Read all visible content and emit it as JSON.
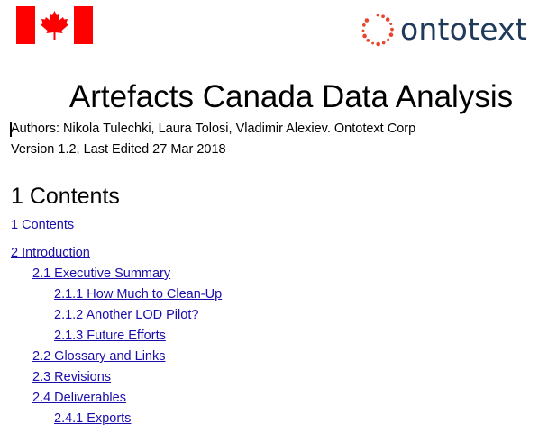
{
  "document": {
    "title": "Artefacts Canada Data Analysis",
    "authors": "Authors: Nikola Tulechki, Laura Tolosi, Vladimir Alexiev. Ontotext Corp",
    "version": "Version 1.2, Last Edited 27 Mar 2018",
    "contents_heading": "1 Contents"
  },
  "logo": {
    "text": "ontotext",
    "icon": "dotted-ring-icon",
    "color": "#1f3a5a",
    "accent": "#e8452c"
  },
  "flag": {
    "icon": "canada-flag-icon",
    "red": "#ff0000"
  },
  "toc": [
    {
      "label": "1 Contents",
      "level": 1
    },
    {
      "label": "2 Introduction",
      "level": 1
    },
    {
      "label": "2.1 Executive Summary",
      "level": 2
    },
    {
      "label": "2.1.1 How Much to Clean-Up",
      "level": 3
    },
    {
      "label": "2.1.2 Another LOD Pilot?",
      "level": 3
    },
    {
      "label": "2.1.3 Future Efforts",
      "level": 3
    },
    {
      "label": "2.2 Glossary and Links",
      "level": 2
    },
    {
      "label": "2.3 Revisions",
      "level": 2
    },
    {
      "label": "2.4 Deliverables",
      "level": 2
    },
    {
      "label": "2.4.1 Exports",
      "level": 3
    }
  ],
  "link_color": "#1a0dab"
}
